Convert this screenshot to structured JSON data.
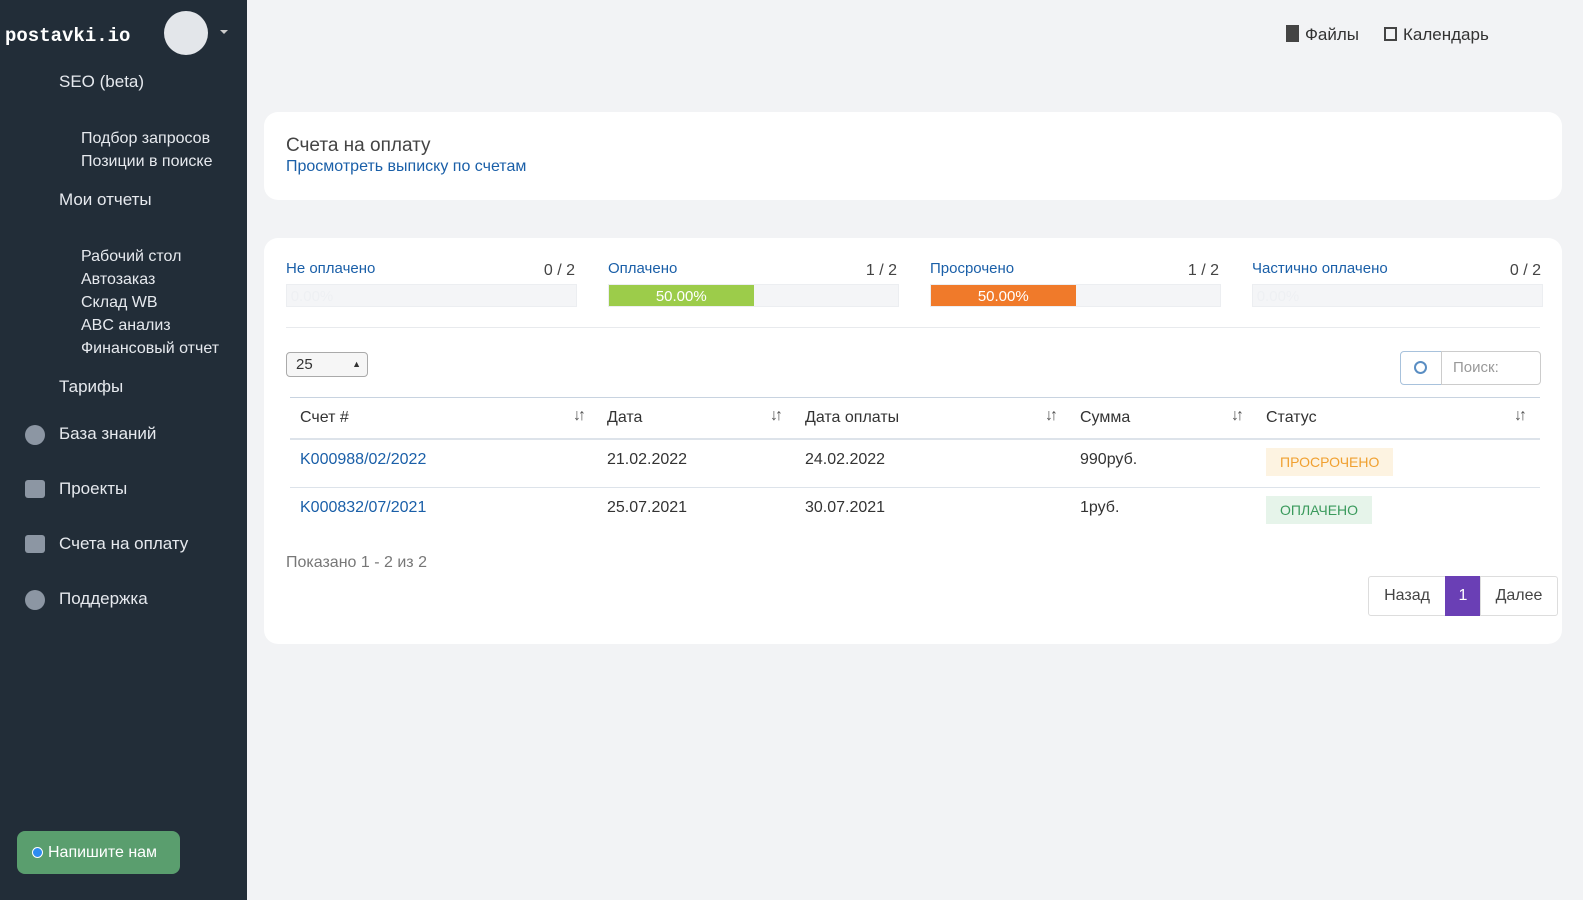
{
  "sidebar": {
    "logo": "postavki.io",
    "menu": [
      {
        "text": "SEO (beta)",
        "level": 1
      },
      {
        "text": "Подбор запросов",
        "level": 2
      },
      {
        "text": "Позиции в поиске",
        "level": 2
      },
      {
        "text": "Мои отчеты",
        "level": 1
      },
      {
        "text": "Рабочий стол",
        "level": 2
      },
      {
        "text": "Автозаказ",
        "level": 2
      },
      {
        "text": "Склад WB",
        "level": 2
      },
      {
        "text": "ABC анализ",
        "level": 2
      },
      {
        "text": "Финансовый отчет",
        "level": 2
      },
      {
        "text": "Тарифы",
        "level": 1
      },
      {
        "text": "База знаний",
        "level": 1
      },
      {
        "text": "Проекты",
        "level": 1
      },
      {
        "text": "Счета на оплату",
        "level": 1
      },
      {
        "text": "Поддержка",
        "level": 1
      }
    ],
    "chat_button": "Напишите нам"
  },
  "topbar": {
    "files": "Файлы",
    "calendar": "Календарь"
  },
  "header_card": {
    "title": "Счета на оплату",
    "link": "Просмотреть выписку по счетам"
  },
  "stats": [
    {
      "label": "Не оплачено",
      "count": "0 / 2",
      "percent": {
        "value": 0,
        "label": "0.00%"
      }
    },
    {
      "label": "Оплачено",
      "count": "1 / 2",
      "percent": {
        "value": 50,
        "label": "50.00%"
      }
    },
    {
      "label": "Просрочено",
      "count": "1 / 2",
      "percent": {
        "value": 50,
        "label": "50.00%"
      }
    },
    {
      "label": "Частично оплачено",
      "count": "0 / 2",
      "percent": {
        "value": 0,
        "label": "0.00%"
      }
    }
  ],
  "page_length": "25",
  "search_placeholder": "Поиск:",
  "table": {
    "headers": [
      "Счет #",
      "Дата",
      "Дата оплаты",
      "Сумма",
      "Статус"
    ],
    "rows": [
      [
        "K000988/02/2022",
        "21.02.2022",
        "24.02.2022",
        "990руб.",
        "ПРОСРОЧЕНО"
      ],
      [
        "K000832/07/2021",
        "25.07.2021",
        "30.07.2021",
        "1руб.",
        "ОПЛАЧЕНО"
      ]
    ]
  },
  "info": "Показано 1 - 2 из 2",
  "pagination": {
    "prev": "Назад",
    "current": "1",
    "next": "Далее"
  }
}
